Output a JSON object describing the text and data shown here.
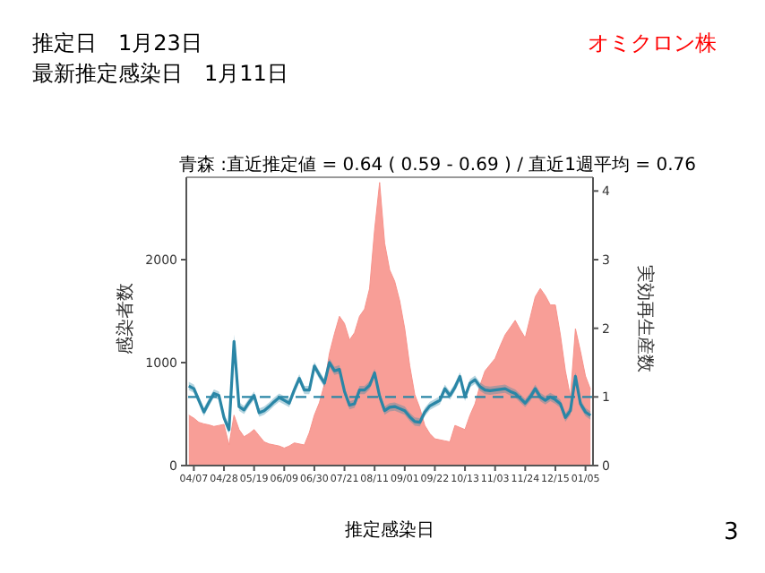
{
  "chart_data": {
    "type": "area",
    "title": "青森 :直近推定値 = 0.64 ( 0.59 - 0.69 ) / 直近1週平均 = 0.76",
    "xlabel": "推定感染日",
    "ylabel": "感染者数",
    "y2label": "実効再生産数",
    "annotations": [
      "推定日　1月23日",
      "最新推定感染日　1月11日",
      "オミクロン株",
      "3"
    ],
    "categories": [
      null,
      "04/07",
      null,
      null,
      null,
      null,
      null,
      "04/28",
      null,
      null,
      null,
      null,
      null,
      "05/19",
      null,
      null,
      null,
      null,
      null,
      "06/09",
      null,
      null,
      null,
      null,
      null,
      "06/30",
      null,
      null,
      null,
      null,
      null,
      "07/21",
      null,
      null,
      null,
      null,
      null,
      "08/11",
      null,
      null,
      null,
      null,
      null,
      "09/01",
      null,
      null,
      null,
      null,
      null,
      "09/22",
      null,
      null,
      null,
      null,
      null,
      "10/13",
      null,
      null,
      null,
      null,
      null,
      "11/03",
      null,
      null,
      null,
      null,
      null,
      "11/24",
      null,
      null,
      null,
      null,
      null,
      "12/15",
      null,
      null,
      null,
      null,
      null,
      "01/05",
      null
    ],
    "ylim": [
      0,
      2800
    ],
    "yticks": [
      0,
      1000,
      2000
    ],
    "y2lim": [
      0,
      4.2
    ],
    "y2ticks": [
      0,
      1,
      2,
      3,
      4
    ],
    "grid": false,
    "legend": false,
    "ref_lines": [
      {
        "axis": "y2",
        "value": 1,
        "color": "#2a86a6",
        "line_style": "dashed"
      }
    ],
    "series": [
      {
        "color": "#f7938c",
        "values": [
          490,
          460,
          420,
          405,
          395,
          380,
          390,
          400,
          200,
          490,
          350,
          280,
          310,
          350,
          290,
          230,
          210,
          200,
          190,
          170,
          190,
          220,
          210,
          200,
          320,
          490,
          610,
          790,
          1090,
          1280,
          1450,
          1380,
          1220,
          1290,
          1450,
          1520,
          1720,
          2290,
          2750,
          2160,
          1900,
          1790,
          1600,
          1330,
          970,
          690,
          560,
          390,
          310,
          260,
          250,
          240,
          230,
          390,
          370,
          350,
          490,
          600,
          780,
          920,
          980,
          1040,
          1160,
          1270,
          1340,
          1410,
          1320,
          1240,
          1440,
          1640,
          1720,
          1650,
          1560,
          1560,
          1270,
          920,
          670,
          1330,
          1110,
          870,
          740
        ]
      },
      {
        "type": "line",
        "axis": "y2",
        "color": "#2a86a6",
        "values": [
          1.16,
          1.12,
          0.95,
          0.78,
          0.92,
          1.05,
          1.02,
          0.7,
          0.52,
          1.81,
          0.86,
          0.81,
          0.92,
          1.02,
          0.77,
          0.8,
          0.86,
          0.93,
          0.99,
          0.95,
          0.91,
          1.1,
          1.27,
          1.1,
          1.1,
          1.45,
          1.32,
          1.2,
          1.5,
          1.38,
          1.4,
          1.08,
          0.88,
          0.9,
          1.1,
          1.1,
          1.17,
          1.35,
          1.01,
          0.8,
          0.85,
          0.86,
          0.83,
          0.8,
          0.71,
          0.64,
          0.63,
          0.78,
          0.87,
          0.91,
          0.95,
          1.12,
          1.02,
          1.14,
          1.3,
          1.0,
          1.2,
          1.25,
          1.15,
          1.1,
          1.09,
          1.1,
          1.11,
          1.12,
          1.08,
          1.05,
          0.98,
          0.91,
          1.0,
          1.12,
          1.0,
          0.95,
          1.0,
          0.96,
          0.9,
          0.7,
          0.8,
          1.3,
          0.9,
          0.78,
          0.73
        ],
        "lower": [
          1.1,
          1.06,
          0.89,
          0.72,
          0.86,
          0.99,
          0.96,
          0.64,
          0.46,
          1.71,
          0.8,
          0.75,
          0.86,
          0.96,
          0.71,
          0.74,
          0.8,
          0.87,
          0.93,
          0.89,
          0.85,
          1.04,
          1.21,
          1.04,
          1.04,
          1.39,
          1.26,
          1.14,
          1.44,
          1.32,
          1.34,
          1.02,
          0.82,
          0.84,
          1.04,
          1.04,
          1.11,
          1.29,
          0.95,
          0.74,
          0.79,
          0.8,
          0.77,
          0.74,
          0.65,
          0.58,
          0.57,
          0.72,
          0.81,
          0.85,
          0.89,
          1.06,
          0.96,
          1.08,
          1.24,
          0.94,
          1.14,
          1.19,
          1.09,
          1.04,
          1.03,
          1.04,
          1.05,
          1.06,
          1.02,
          0.99,
          0.92,
          0.85,
          0.94,
          1.06,
          0.94,
          0.89,
          0.94,
          0.9,
          0.84,
          0.64,
          0.74,
          1.24,
          0.84,
          0.72,
          0.67
        ],
        "upper": [
          1.22,
          1.18,
          1.01,
          0.84,
          0.98,
          1.11,
          1.08,
          0.76,
          0.58,
          1.91,
          0.92,
          0.87,
          0.98,
          1.08,
          0.83,
          0.86,
          0.92,
          0.99,
          1.05,
          1.01,
          0.97,
          1.16,
          1.33,
          1.16,
          1.16,
          1.51,
          1.38,
          1.26,
          1.56,
          1.44,
          1.46,
          1.14,
          0.94,
          0.96,
          1.16,
          1.16,
          1.23,
          1.41,
          1.07,
          0.86,
          0.91,
          0.92,
          0.89,
          0.86,
          0.77,
          0.7,
          0.69,
          0.84,
          0.93,
          0.97,
          1.01,
          1.18,
          1.08,
          1.2,
          1.36,
          1.06,
          1.26,
          1.31,
          1.21,
          1.16,
          1.15,
          1.16,
          1.17,
          1.18,
          1.14,
          1.11,
          1.04,
          0.97,
          1.06,
          1.18,
          1.06,
          1.01,
          1.06,
          1.02,
          0.96,
          0.76,
          0.86,
          1.36,
          0.96,
          0.84,
          0.79
        ]
      }
    ]
  }
}
